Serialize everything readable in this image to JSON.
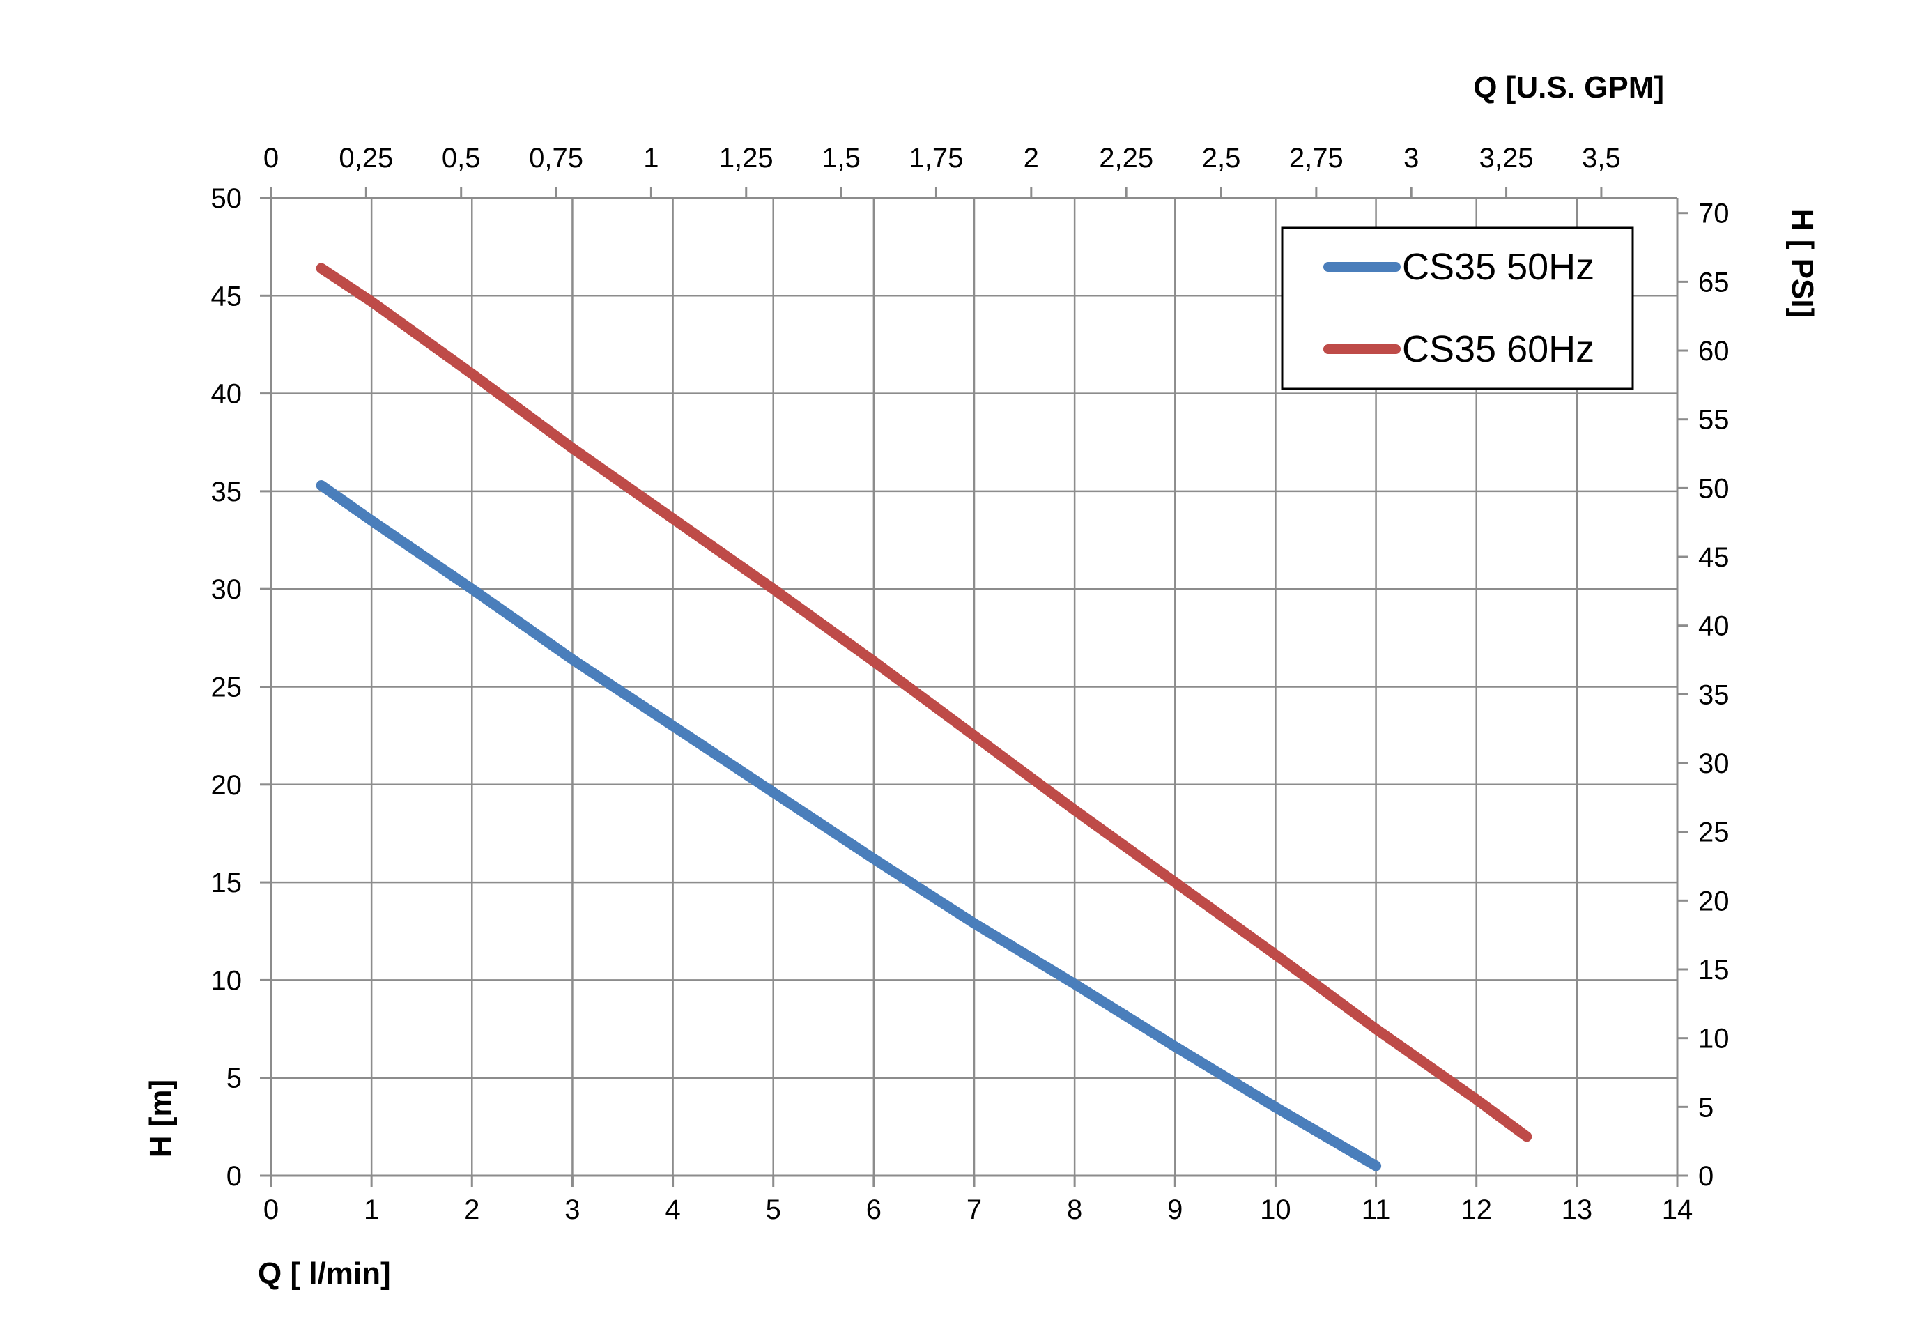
{
  "chart_data": {
    "type": "line",
    "xlabel": "Q [ l/min]",
    "ylabel": "H [m]",
    "x2label": "Q  [U.S. GPM]",
    "y2label": "H [ PSI]",
    "xlim": [
      0,
      14
    ],
    "ylim": [
      0,
      50
    ],
    "x2lim": [
      0,
      3.7
    ],
    "y2lim": [
      0,
      71.1
    ],
    "x_ticks": [
      "0",
      "1",
      "2",
      "3",
      "4",
      "5",
      "6",
      "7",
      "8",
      "9",
      "10",
      "11",
      "12",
      "13",
      "14"
    ],
    "y_ticks": [
      "0",
      "5",
      "10",
      "15",
      "20",
      "25",
      "30",
      "35",
      "40",
      "45",
      "50"
    ],
    "x2_ticks": [
      "0",
      "0,25",
      "0,5",
      "0,75",
      "1",
      "1,25",
      "1,5",
      "1,75",
      "2",
      "2,25",
      "2,5",
      "2,75",
      "3",
      "3,25",
      "3,5"
    ],
    "y2_ticks": [
      "0",
      "5",
      "10",
      "15",
      "20",
      "25",
      "30",
      "35",
      "40",
      "45",
      "50",
      "55",
      "60",
      "65",
      "70"
    ],
    "grid": true,
    "legend_position": "top-right",
    "series": [
      {
        "name": "CS35 50Hz",
        "color": "#4A7EBB",
        "x": [
          0.5,
          1,
          2,
          3,
          4,
          5,
          6,
          7,
          8,
          9,
          10,
          11
        ],
        "y": [
          35.3,
          33.5,
          30,
          26.4,
          23,
          19.6,
          16.2,
          12.9,
          9.8,
          6.6,
          3.5,
          0.5
        ]
      },
      {
        "name": "CS35 60Hz",
        "color": "#BE4B48",
        "x": [
          0.5,
          1,
          2,
          3,
          4,
          5,
          6,
          7,
          8,
          9,
          10,
          11,
          12,
          12.5
        ],
        "y": [
          46.4,
          44.7,
          41,
          37.2,
          33.6,
          30,
          26.3,
          22.5,
          18.7,
          15,
          11.3,
          7.5,
          3.9,
          2
        ]
      }
    ]
  }
}
